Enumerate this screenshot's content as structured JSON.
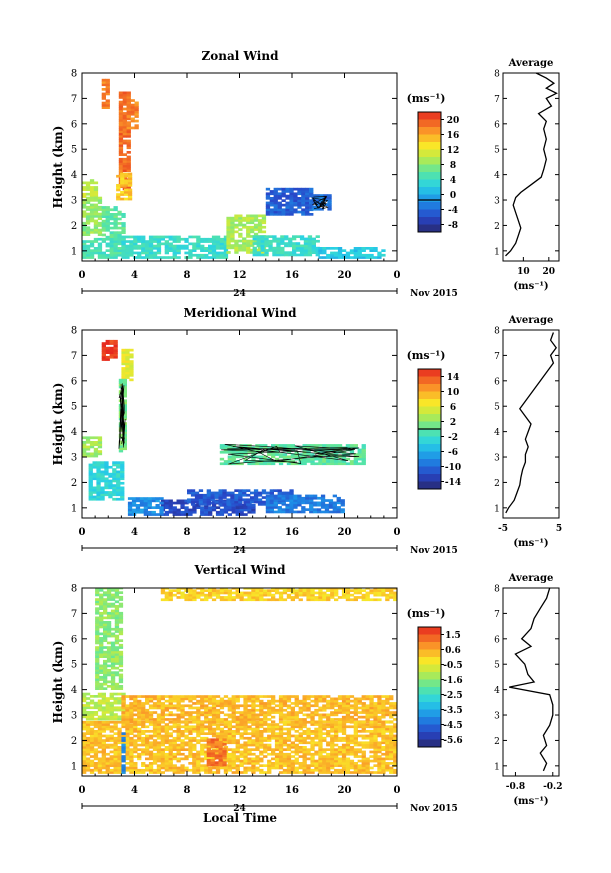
{
  "chart_data": [
    {
      "type": "heatmap",
      "title": "Zonal Wind",
      "xlabel": "",
      "ylabel": "Height (km)",
      "xlim": [
        0,
        24
      ],
      "ylim": [
        0.6,
        8
      ],
      "xticks": [
        "0",
        "4",
        "8",
        "12",
        "16",
        "20",
        "0"
      ],
      "yticks": [
        "1",
        "2",
        "3",
        "4",
        "5",
        "6",
        "7",
        "8"
      ],
      "date_axis": {
        "day": "24",
        "month": "Nov 2015"
      },
      "colorbar": {
        "unit": "(ms⁻¹)",
        "min": -8,
        "max": 22,
        "ticks": [
          "20",
          "16",
          "12",
          "8",
          "4",
          "0",
          "-4",
          "-8"
        ],
        "contour_at": 0
      },
      "average_profile": {
        "title": "Average",
        "xlabel": "(ms⁻¹)",
        "xlim": [
          2,
          24
        ],
        "xticks": [
          "10",
          "20"
        ],
        "height": [
          0.8,
          1.0,
          1.3,
          1.6,
          1.9,
          2.2,
          2.5,
          2.8,
          3.1,
          3.3,
          3.6,
          3.9,
          4.2,
          4.6,
          5.0,
          5.4,
          5.8,
          6.1,
          6.4,
          6.7,
          7.0,
          7.2,
          7.4,
          7.6,
          7.8,
          8.0
        ],
        "values": [
          3,
          5,
          7,
          8,
          9,
          8,
          7,
          6,
          7,
          9,
          13,
          17,
          18,
          19,
          18,
          19,
          18,
          19,
          16,
          21,
          19,
          23,
          19,
          22,
          19,
          15
        ]
      },
      "field": [
        {
          "x": [
            1.5,
            2.0
          ],
          "y": [
            6.6,
            7.7
          ],
          "value": 18
        },
        {
          "x": [
            2.8,
            3.4
          ],
          "y": [
            3.4,
            7.2
          ],
          "value": 19
        },
        {
          "x": [
            3.4,
            4.2
          ],
          "y": [
            5.8,
            6.9
          ],
          "value": 18
        },
        {
          "x": [
            2.6,
            3.6
          ],
          "y": [
            3.0,
            4.0
          ],
          "value": 15
        },
        {
          "x": [
            0.0,
            1.0
          ],
          "y": [
            3.1,
            3.8
          ],
          "value": 11
        },
        {
          "x": [
            0.0,
            1.5
          ],
          "y": [
            1.6,
            3.1
          ],
          "value": 9
        },
        {
          "x": [
            1.5,
            3.0
          ],
          "y": [
            1.5,
            2.7
          ],
          "value": 7
        },
        {
          "x": [
            0.0,
            3.0
          ],
          "y": [
            0.7,
            1.5
          ],
          "value": 6
        },
        {
          "x": [
            3.0,
            11.0
          ],
          "y": [
            0.7,
            1.6
          ],
          "value": 5
        },
        {
          "x": [
            11.0,
            14.0
          ],
          "y": [
            0.9,
            2.4
          ],
          "value": 10
        },
        {
          "x": [
            13.0,
            18.0
          ],
          "y": [
            0.8,
            1.6
          ],
          "value": 5
        },
        {
          "x": [
            18.0,
            23.0
          ],
          "y": [
            0.7,
            1.1
          ],
          "value": 3
        },
        {
          "x": [
            14.0,
            17.5
          ],
          "y": [
            2.4,
            3.4
          ],
          "value": -3
        },
        {
          "x": [
            17.5,
            18.8
          ],
          "y": [
            2.6,
            3.2
          ],
          "value": -2
        }
      ]
    },
    {
      "type": "heatmap",
      "title": "Meridional Wind",
      "xlabel": "",
      "ylabel": "Height (km)",
      "xlim": [
        0,
        24
      ],
      "ylim": [
        0.6,
        8
      ],
      "xticks": [
        "0",
        "4",
        "8",
        "12",
        "16",
        "20",
        "0"
      ],
      "yticks": [
        "1",
        "2",
        "3",
        "4",
        "5",
        "6",
        "7",
        "8"
      ],
      "date_axis": {
        "day": "24",
        "month": "Nov 2015"
      },
      "colorbar": {
        "unit": "(ms⁻¹)",
        "min": -16,
        "max": 16,
        "ticks": [
          "14",
          "10",
          "6",
          "2",
          "-2",
          "-6",
          "-10",
          "-14"
        ],
        "contour_at": 0
      },
      "average_profile": {
        "title": "Average",
        "xlabel": "(ms⁻¹)",
        "xlim": [
          -5,
          5
        ],
        "xticks": [
          "-5",
          "5"
        ],
        "height": [
          0.8,
          1.0,
          1.3,
          1.6,
          1.9,
          2.2,
          2.5,
          2.8,
          3.1,
          3.4,
          3.7,
          4.0,
          4.3,
          4.6,
          4.9,
          5.2,
          5.5,
          5.8,
          6.1,
          6.4,
          6.7,
          7.0,
          7.3,
          7.6,
          7.9
        ],
        "values": [
          -4.5,
          -4,
          -3,
          -2.5,
          -2,
          -1.8,
          -1.5,
          -1,
          -1,
          -0.5,
          -1,
          -0.5,
          0,
          -1,
          -2,
          -1,
          0,
          1,
          2,
          3,
          4,
          3.5,
          4.5,
          3.5,
          4
        ]
      },
      "field": [
        {
          "x": [
            1.5,
            2.5
          ],
          "y": [
            6.8,
            7.6
          ],
          "value": 15
        },
        {
          "x": [
            3.0,
            3.7
          ],
          "y": [
            6.0,
            7.2
          ],
          "value": 6
        },
        {
          "x": [
            2.8,
            3.3
          ],
          "y": [
            3.2,
            6.0
          ],
          "value": 1
        },
        {
          "x": [
            0.0,
            1.5
          ],
          "y": [
            3.0,
            3.8
          ],
          "value": 3
        },
        {
          "x": [
            0.5,
            3.0
          ],
          "y": [
            1.3,
            2.8
          ],
          "value": -3
        },
        {
          "x": [
            10.5,
            21.5
          ],
          "y": [
            2.7,
            3.5
          ],
          "value": 0
        },
        {
          "x": [
            6.0,
            13.0
          ],
          "y": [
            0.7,
            1.3
          ],
          "value": -12
        },
        {
          "x": [
            8.0,
            16.0
          ],
          "y": [
            1.1,
            1.7
          ],
          "value": -11
        },
        {
          "x": [
            14.0,
            20.0
          ],
          "y": [
            0.8,
            1.5
          ],
          "value": -9
        },
        {
          "x": [
            3.5,
            6.0
          ],
          "y": [
            0.7,
            1.4
          ],
          "value": -8
        }
      ]
    },
    {
      "type": "heatmap",
      "title": "Vertical Wind",
      "xlabel": "Local Time",
      "ylabel": "Height (km)",
      "xlim": [
        0,
        24
      ],
      "ylim": [
        0.6,
        8
      ],
      "xticks": [
        "0",
        "4",
        "8",
        "12",
        "16",
        "20",
        "0"
      ],
      "yticks": [
        "1",
        "2",
        "3",
        "4",
        "5",
        "6",
        "7",
        "8"
      ],
      "date_axis": {
        "day": "24",
        "month": "Nov 2015"
      },
      "colorbar": {
        "unit": "(ms⁻¹)",
        "min": -6,
        "max": 2,
        "ticks": [
          "1.5",
          "0.6",
          "-0.5",
          "-1.6",
          "-2.5",
          "-3.5",
          "-4.5",
          "-5.6"
        ]
      },
      "average_profile": {
        "title": "Average",
        "xlabel": "(ms⁻¹)",
        "xlim": [
          -1.0,
          -0.1
        ],
        "xticks": [
          "-0.8",
          "-0.2"
        ],
        "height": [
          0.8,
          1.1,
          1.5,
          1.8,
          2.2,
          2.6,
          3.0,
          3.4,
          3.8,
          4.1,
          4.3,
          4.6,
          5.0,
          5.4,
          5.7,
          6.0,
          6.4,
          6.8,
          7.2,
          7.6,
          8.0
        ],
        "values": [
          -0.35,
          -0.3,
          -0.4,
          -0.3,
          -0.35,
          -0.25,
          -0.2,
          -0.2,
          -0.25,
          -0.9,
          -0.5,
          -0.6,
          -0.65,
          -0.8,
          -0.55,
          -0.7,
          -0.55,
          -0.5,
          -0.4,
          -0.3,
          -0.25
        ]
      },
      "field": [
        {
          "x": [
            1.0,
            3.0
          ],
          "y": [
            4.0,
            8.0
          ],
          "value": -1.5
        },
        {
          "x": [
            0.0,
            3.0
          ],
          "y": [
            2.8,
            3.8
          ],
          "value": -1.0
        },
        {
          "x": [
            3.0,
            24.0
          ],
          "y": [
            2.7,
            3.7
          ],
          "value": 0.3
        },
        {
          "x": [
            0.0,
            24.0
          ],
          "y": [
            0.7,
            2.7
          ],
          "value": 0.2
        },
        {
          "x": [
            9.5,
            11.0
          ],
          "y": [
            1.0,
            2.0
          ],
          "value": 1.1
        },
        {
          "x": [
            3.0,
            3.3
          ],
          "y": [
            0.7,
            2.4
          ],
          "value": -4.0
        },
        {
          "x": [
            6.0,
            24.0
          ],
          "y": [
            7.5,
            8.0
          ],
          "value": 0.0
        }
      ]
    }
  ]
}
